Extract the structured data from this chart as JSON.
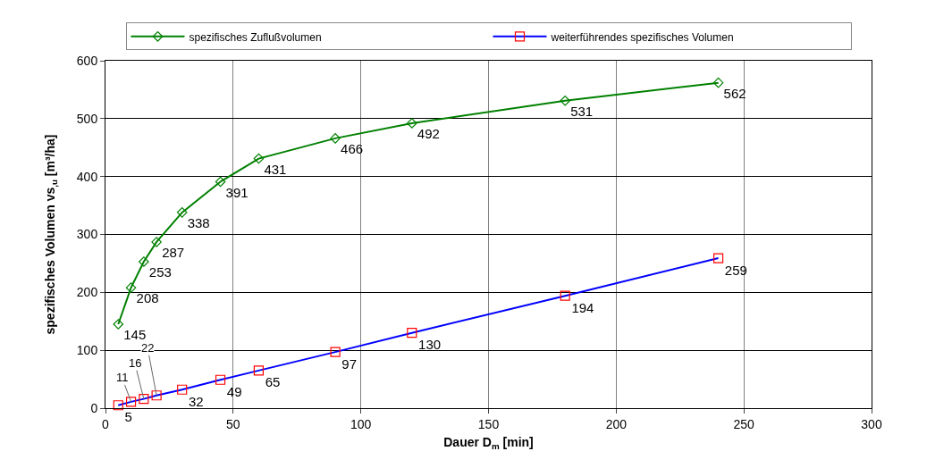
{
  "chart_data": {
    "type": "line",
    "xlabel": "Dauer D$_{m}$ [min]",
    "ylabel": "spezifisches Volumen vs$_{,u}$ [m³/ha]",
    "x": [
      5,
      10,
      15,
      20,
      30,
      45,
      60,
      90,
      120,
      180,
      240
    ],
    "series": [
      {
        "name": "spezifisches Zuflußvolumen",
        "color": "#008000",
        "marker": "diamond",
        "values": [
          145,
          208,
          253,
          287,
          338,
          391,
          431,
          466,
          492,
          531,
          562
        ]
      },
      {
        "name": "weiterführendes spezifisches Volumen",
        "color": "#0000ff",
        "colors": [
          "#ff0000",
          "#ff0000",
          "#ff0000",
          "#ff0000",
          "#ff0000",
          "#ff0000",
          "#ff0000",
          "#ff0000",
          "#ff0000",
          "#ff0000",
          "#ff0000"
        ],
        "marker": "square",
        "values": [
          5,
          11,
          16,
          22,
          32,
          49,
          65,
          97,
          130,
          194,
          259
        ]
      }
    ],
    "xlim": [
      0,
      300
    ],
    "xticks": [
      0,
      50,
      100,
      150,
      200,
      250,
      300
    ],
    "ylim": [
      0,
      600
    ],
    "yticks": [
      0,
      100,
      200,
      300,
      400,
      500,
      600
    ],
    "grid": true,
    "legend": "top",
    "data_labels": true,
    "line_style": "solid"
  }
}
